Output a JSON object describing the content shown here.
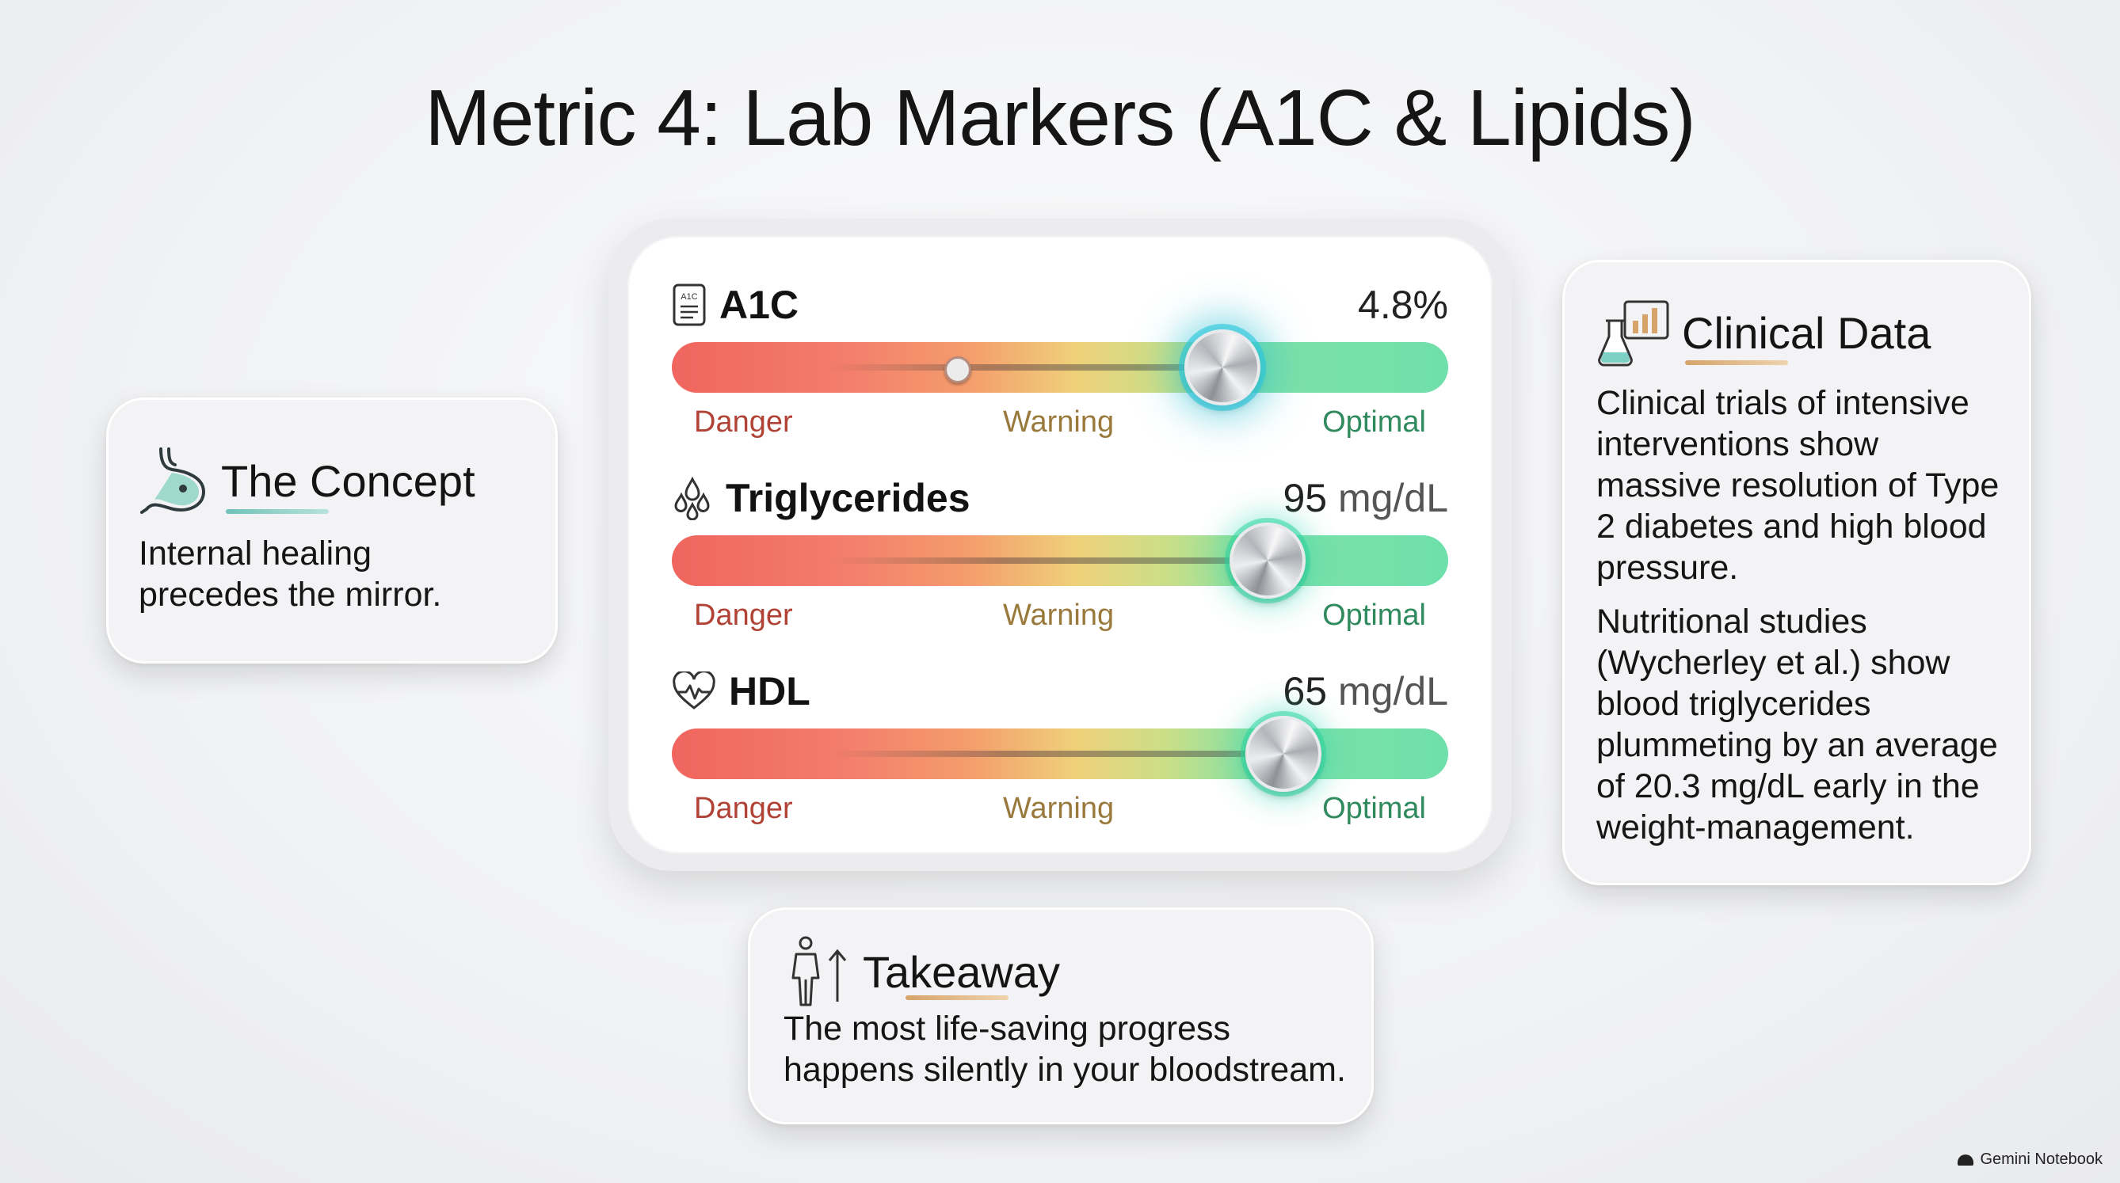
{
  "title": "Metric 4: Lab Markers (A1C & Lipids)",
  "concept": {
    "title": "The Concept",
    "body": "Internal healing precedes the mirror.",
    "icon": "stomach-icon",
    "accent": "#7fc9c0"
  },
  "clinical": {
    "title": "Clinical Data",
    "icon": "lab-flask-chart-icon",
    "accent": "#d6a46a",
    "para1": "Clinical trials of intensive interventions show massive resolution of Type 2 diabetes and high blood pressure.",
    "para2": "Nutritional studies (Wycherley et al.) show blood triglycerides plummeting by an average of 20.3 mg/dL early in the weight-management."
  },
  "takeaway": {
    "title": "Takeaway",
    "icon": "person-arrow-up-icon",
    "accent": "#d6a46a",
    "body": "The most life-saving progress happens silently in your bloodstream."
  },
  "metrics": [
    {
      "name": "A1C",
      "value": "4.8%",
      "unit": "",
      "icon": "lab-report-icon",
      "level": 0.705,
      "previous_level": 0.37
    },
    {
      "name": "Triglycerides",
      "value": "95",
      "unit": "mg/dL",
      "icon": "droplets-icon",
      "level": 0.764
    },
    {
      "name": "HDL",
      "value": "65",
      "unit": "mg/dL",
      "icon": "heart-pulse-icon",
      "level": 0.785
    }
  ],
  "zones": {
    "danger": "Danger",
    "warning": "Warning",
    "optimal": "Optimal"
  },
  "watermark": "Gemini Notebook"
}
